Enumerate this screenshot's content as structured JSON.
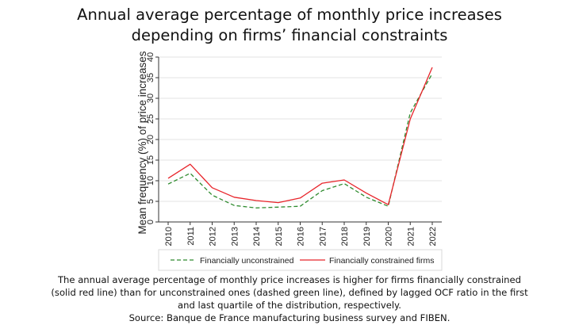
{
  "title_lines": [
    "Annual average percentage of monthly price increases",
    "depending on firms’ financial constraints"
  ],
  "caption_lines": [
    "The annual average percentage of monthly price increases is higher for firms financially constrained",
    "(solid red line) than for unconstrained ones (dashed green line), defined by lagged OCF ratio in the first",
    "and last quartile of the distribution, respectively.",
    "Source: Banque de France manufacturing business survey and FIBEN."
  ],
  "chart_data": {
    "type": "line",
    "title": "Annual average percentage of monthly price increases depending on firms’ financial constraints",
    "xlabel": "",
    "ylabel": "Mean frequency (%) of price increases",
    "x": [
      "2010",
      "2011",
      "2012",
      "2013",
      "2014",
      "2015",
      "2016",
      "2017",
      "2018",
      "2019",
      "2020",
      "2021",
      "2022"
    ],
    "ylim": [
      0,
      40
    ],
    "yticks": [
      "0",
      "5",
      "10",
      "15",
      "20",
      "25",
      "30",
      "35",
      "40"
    ],
    "grid": true,
    "legend_position": "bottom",
    "series": [
      {
        "name": "Financially unconstrained",
        "color": "#2e8b2e",
        "style": "dashed",
        "values": [
          9.2,
          11.8,
          6.5,
          4.0,
          3.4,
          3.6,
          3.8,
          7.6,
          9.3,
          6.0,
          3.8,
          26.5,
          36.0
        ]
      },
      {
        "name": "Financially constrained firms",
        "color": "#e8242a",
        "style": "solid",
        "values": [
          10.6,
          14.0,
          8.3,
          6.0,
          5.2,
          4.7,
          5.8,
          9.4,
          10.2,
          7.0,
          4.2,
          25.0,
          37.5
        ]
      }
    ]
  }
}
